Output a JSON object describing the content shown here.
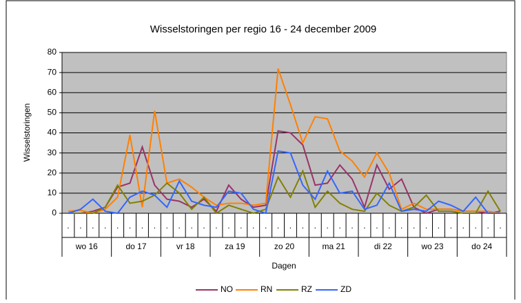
{
  "chart_data": {
    "type": "line",
    "title": "Wisselstoringen per regio 16 - 24 december 2009",
    "y_label": "Wisselstoringen",
    "x_label": "Dagen",
    "categories": [
      ".",
      ".",
      ".",
      ".",
      ".",
      ".",
      ".",
      ".",
      ".",
      ".",
      ".",
      ".",
      ".",
      ".",
      ".",
      ".",
      ".",
      ".",
      ".",
      ".",
      ".",
      ".",
      ".",
      ".",
      ".",
      ".",
      ".",
      ".",
      ".",
      ".",
      ".",
      ".",
      ".",
      ".",
      ".",
      "."
    ],
    "groups": [
      "wo 16",
      "do 17",
      "vr 18",
      "za 19",
      "zo 20",
      "ma 21",
      "di 22",
      "wo 23",
      "do 24"
    ],
    "ylim": [
      0,
      80
    ],
    "yticks": [
      0,
      10,
      20,
      30,
      40,
      50,
      60,
      70,
      80
    ],
    "grid": true,
    "series": [
      {
        "name": "NO",
        "color": "#993366",
        "values": [
          0,
          0,
          1,
          3,
          13,
          15,
          33,
          14,
          7,
          6,
          3,
          7,
          1,
          14,
          7,
          3,
          4,
          41,
          40,
          34,
          14,
          15,
          24,
          17,
          3,
          24,
          12,
          17,
          3,
          0,
          2,
          2,
          1,
          1,
          0,
          1
        ]
      },
      {
        "name": "RN",
        "color": "#ff8000",
        "values": [
          1,
          1.5,
          0,
          2,
          8,
          39,
          3,
          51,
          15,
          17,
          13,
          8,
          4,
          5,
          5,
          4,
          5,
          72,
          54,
          35,
          48,
          47,
          31,
          26,
          18,
          30,
          20,
          2,
          5,
          2,
          2,
          2,
          1,
          1,
          1,
          0
        ]
      },
      {
        "name": "RZ",
        "color": "#808000",
        "values": [
          0,
          0,
          0,
          3,
          14,
          5,
          6,
          9,
          15,
          10,
          2,
          8,
          0,
          4,
          2,
          0,
          2,
          18,
          8,
          21,
          3,
          11,
          5,
          2,
          1,
          10,
          4,
          1,
          3,
          9,
          1,
          1,
          0,
          0,
          11,
          1
        ]
      },
      {
        "name": "ZD",
        "color": "#3366ff",
        "values": [
          0,
          2,
          7,
          1,
          0,
          8,
          11,
          9,
          3,
          16,
          6,
          4,
          3,
          11,
          10,
          2,
          0,
          31,
          30,
          14,
          7,
          21,
          10,
          11,
          2,
          4,
          15,
          1,
          2,
          1,
          6,
          4,
          1,
          8,
          0,
          0
        ]
      }
    ]
  }
}
